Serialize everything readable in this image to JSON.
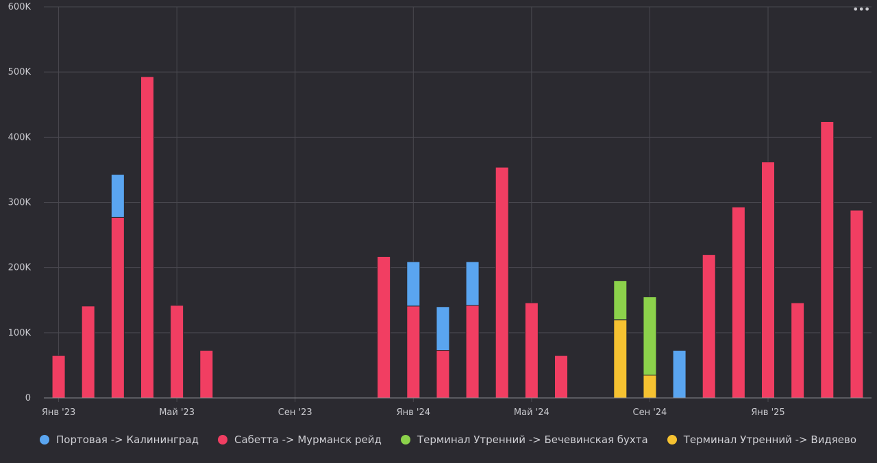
{
  "chart_data": {
    "type": "bar",
    "stacked": true,
    "categories": [
      "2023-01",
      "2023-02",
      "2023-03",
      "2023-04",
      "2023-05",
      "2023-06",
      "2023-07",
      "2023-08",
      "2023-09",
      "2023-10",
      "2023-11",
      "2023-12",
      "2024-01",
      "2024-02",
      "2024-03",
      "2024-04",
      "2024-05",
      "2024-06",
      "2024-07",
      "2024-08",
      "2024-09",
      "2024-10",
      "2024-11",
      "2024-12",
      "2025-01",
      "2025-02",
      "2025-03",
      "2025-04"
    ],
    "series": [
      {
        "name": "Терминал Утренний -> Видяево",
        "color": "#f6c231",
        "values": [
          0,
          0,
          0,
          0,
          0,
          0,
          0,
          0,
          0,
          0,
          0,
          0,
          0,
          0,
          0,
          0,
          0,
          0,
          0,
          120000,
          35000,
          0,
          0,
          0,
          0,
          0,
          0,
          0
        ]
      },
      {
        "name": "Сабетта -> Мурманск рейд",
        "color": "#f13e62",
        "values": [
          65000,
          141000,
          277000,
          493000,
          142000,
          73000,
          0,
          0,
          0,
          0,
          0,
          217000,
          141000,
          73000,
          142000,
          354000,
          146000,
          65000,
          0,
          0,
          0,
          0,
          220000,
          293000,
          362000,
          146000,
          424000,
          288000
        ]
      },
      {
        "name": "Терминал Утренний -> Бечевинская бухта",
        "color": "#8cd24b",
        "values": [
          0,
          0,
          0,
          0,
          0,
          0,
          0,
          0,
          0,
          0,
          0,
          0,
          0,
          0,
          0,
          0,
          0,
          0,
          0,
          60000,
          120000,
          0,
          0,
          0,
          0,
          0,
          0,
          0
        ]
      },
      {
        "name": "Портовая -> Калининград",
        "color": "#5aa5f0",
        "values": [
          0,
          0,
          66000,
          0,
          0,
          0,
          0,
          0,
          0,
          0,
          0,
          0,
          68000,
          67000,
          67000,
          0,
          0,
          0,
          0,
          0,
          0,
          73000,
          0,
          0,
          0,
          0,
          0,
          0
        ]
      }
    ],
    "x_ticks": [
      {
        "category": "2023-01",
        "label": "Янв '23"
      },
      {
        "category": "2023-05",
        "label": "Май '23"
      },
      {
        "category": "2023-09",
        "label": "Сен '23"
      },
      {
        "category": "2024-01",
        "label": "Янв '24"
      },
      {
        "category": "2024-05",
        "label": "Май '24"
      },
      {
        "category": "2024-09",
        "label": "Сен '24"
      },
      {
        "category": "2025-01",
        "label": "Янв '25"
      }
    ],
    "y_ticks": [
      {
        "value": 0,
        "label": "0"
      },
      {
        "value": 100000,
        "label": "100K"
      },
      {
        "value": 200000,
        "label": "200K"
      },
      {
        "value": 300000,
        "label": "300K"
      },
      {
        "value": 400000,
        "label": "400K"
      },
      {
        "value": 500000,
        "label": "500K"
      },
      {
        "value": 600000,
        "label": "600K"
      }
    ],
    "ylim": [
      0,
      600000
    ],
    "grid": true,
    "legend_position": "bottom-left"
  },
  "legend": [
    {
      "label": "Портовая -> Калининград",
      "color": "#5aa5f0"
    },
    {
      "label": "Сабетта -> Мурманск рейд",
      "color": "#f13e62"
    },
    {
      "label": "Терминал Утренний -> Бечевинская бухта",
      "color": "#8cd24b"
    },
    {
      "label": "Терминал Утренний -> Видяево",
      "color": "#f6c231"
    }
  ],
  "menu": {
    "icon": "more-horizontal-icon",
    "label": "•••"
  },
  "theme": {
    "background": "#2b2a30",
    "grid": "#4a4950",
    "text": "#c9c9ce"
  }
}
